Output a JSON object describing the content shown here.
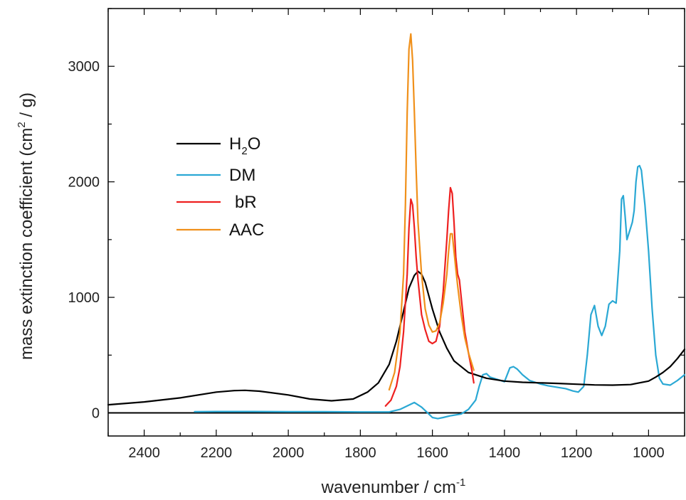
{
  "chart_data": {
    "type": "line",
    "title": "",
    "xlabel": {
      "main": "wavenumber / cm",
      "sup": "-1"
    },
    "ylabel": {
      "main": "mass extinction coefficient (cm",
      "sup": "2",
      "tail": " / g)"
    },
    "xlim": [
      2500,
      900
    ],
    "x_reversed": true,
    "ylim": [
      -200,
      3500
    ],
    "x_ticks": [
      2400,
      2200,
      2000,
      1800,
      1600,
      1400,
      1200,
      1000
    ],
    "x_tick_labels": [
      "2400",
      "2200",
      "2000",
      "1800",
      "1600",
      "1400",
      "1200",
      "1000"
    ],
    "y_ticks": [
      0,
      1000,
      2000,
      3000
    ],
    "y_tick_labels": [
      "0",
      "1000",
      "2000",
      "3000"
    ],
    "grid": false,
    "legend_position": "center-left",
    "series": [
      {
        "name": "H2O",
        "legend": {
          "main": "H",
          "sub": "2",
          "tail": "O"
        },
        "color": "#000000",
        "x": [
          2500,
          2400,
          2300,
          2200,
          2150,
          2120,
          2080,
          2000,
          1940,
          1880,
          1820,
          1780,
          1750,
          1720,
          1700,
          1680,
          1665,
          1650,
          1640,
          1630,
          1620,
          1600,
          1580,
          1560,
          1540,
          1500,
          1450,
          1400,
          1350,
          1300,
          1250,
          1200,
          1150,
          1100,
          1050,
          1000,
          980,
          960,
          940,
          920,
          900
        ],
        "y": [
          70,
          95,
          130,
          180,
          193,
          195,
          188,
          155,
          120,
          105,
          120,
          180,
          260,
          420,
          620,
          880,
          1080,
          1190,
          1225,
          1200,
          1130,
          900,
          700,
          560,
          450,
          350,
          300,
          275,
          265,
          260,
          255,
          248,
          242,
          240,
          245,
          275,
          310,
          350,
          400,
          470,
          550
        ]
      },
      {
        "name": "DM",
        "legend": {
          "main": "DM"
        },
        "color": "#2aa8d4",
        "x": [
          2260,
          2200,
          2100,
          2000,
          1900,
          1800,
          1720,
          1690,
          1670,
          1650,
          1630,
          1610,
          1600,
          1585,
          1570,
          1550,
          1520,
          1500,
          1480,
          1470,
          1460,
          1450,
          1440,
          1420,
          1400,
          1385,
          1375,
          1365,
          1350,
          1330,
          1300,
          1280,
          1250,
          1230,
          1210,
          1195,
          1180,
          1170,
          1160,
          1150,
          1140,
          1130,
          1120,
          1110,
          1100,
          1090,
          1080,
          1075,
          1070,
          1065,
          1060,
          1050,
          1045,
          1040,
          1035,
          1030,
          1025,
          1020,
          1010,
          1000,
          990,
          980,
          970,
          960,
          940,
          920,
          900
        ],
        "y": [
          10,
          12,
          12,
          10,
          10,
          8,
          8,
          30,
          60,
          90,
          50,
          -10,
          -40,
          -50,
          -40,
          -25,
          -10,
          30,
          110,
          230,
          330,
          340,
          310,
          290,
          270,
          390,
          400,
          380,
          330,
          280,
          250,
          235,
          220,
          210,
          190,
          180,
          230,
          500,
          850,
          930,
          750,
          670,
          750,
          940,
          970,
          950,
          1400,
          1850,
          1880,
          1700,
          1500,
          1600,
          1650,
          1750,
          2000,
          2130,
          2140,
          2100,
          1800,
          1400,
          900,
          500,
          300,
          250,
          240,
          280,
          330
        ]
      },
      {
        "name": "bR",
        "legend": {
          "main": "bR"
        },
        "color": "#ee2020",
        "x": [
          1730,
          1715,
          1700,
          1690,
          1680,
          1670,
          1665,
          1660,
          1655,
          1650,
          1645,
          1640,
          1630,
          1620,
          1610,
          1600,
          1590,
          1580,
          1570,
          1560,
          1555,
          1550,
          1545,
          1540,
          1535,
          1530,
          1525,
          1520,
          1510,
          1500,
          1490,
          1485
        ],
        "y": [
          60,
          110,
          230,
          400,
          700,
          1200,
          1600,
          1850,
          1800,
          1600,
          1350,
          1150,
          850,
          720,
          620,
          600,
          620,
          750,
          1050,
          1500,
          1750,
          1950,
          1900,
          1650,
          1350,
          1200,
          1150,
          1000,
          700,
          520,
          360,
          260
        ]
      },
      {
        "name": "AAC",
        "legend": {
          "main": "AAC"
        },
        "color": "#f0901a",
        "x": [
          1720,
          1705,
          1690,
          1680,
          1675,
          1670,
          1665,
          1660,
          1655,
          1650,
          1645,
          1640,
          1630,
          1620,
          1610,
          1600,
          1590,
          1580,
          1570,
          1560,
          1555,
          1550,
          1545,
          1540,
          1535,
          1530,
          1520,
          1510,
          1500,
          1490,
          1485
        ],
        "y": [
          200,
          350,
          700,
          1200,
          1800,
          2600,
          3150,
          3280,
          3050,
          2600,
          2100,
          1650,
          1200,
          900,
          760,
          700,
          710,
          780,
          950,
          1200,
          1400,
          1550,
          1550,
          1400,
          1250,
          1100,
          850,
          650,
          520,
          420,
          370
        ]
      }
    ]
  }
}
